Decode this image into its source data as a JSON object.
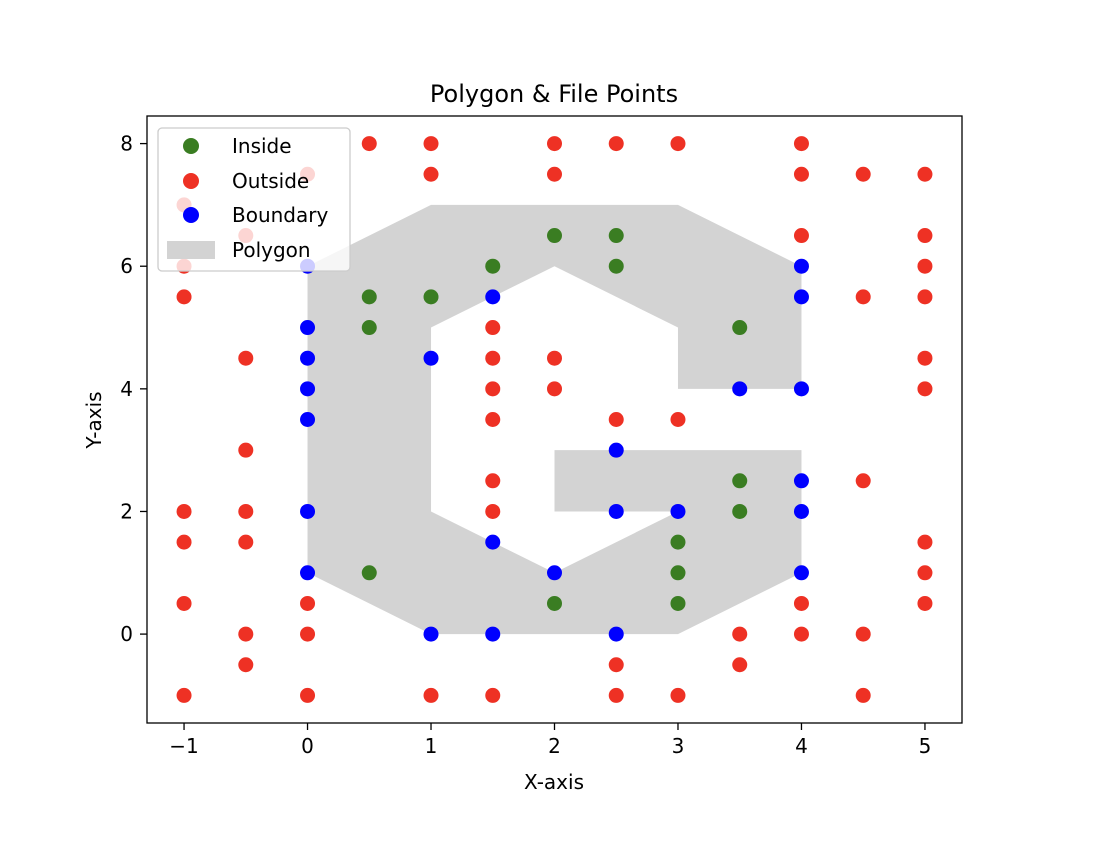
{
  "chart_data": {
    "type": "scatter",
    "title": "Polygon & File Points",
    "xlabel": "X-axis",
    "ylabel": "Y-axis",
    "xlim": [
      -1.3,
      5.3
    ],
    "ylim": [
      -1.45,
      8.45
    ],
    "xticks": [
      -1,
      0,
      1,
      2,
      3,
      4,
      5
    ],
    "xtick_labels": [
      "−1",
      "0",
      "1",
      "2",
      "3",
      "4",
      "5"
    ],
    "yticks": [
      0,
      2,
      4,
      6,
      8
    ],
    "ytick_labels": [
      "0",
      "2",
      "4",
      "6",
      "8"
    ],
    "grid": false,
    "legend_position": "top-left",
    "polygon": {
      "name": "Polygon",
      "color": "#d3d3d3",
      "vertices": [
        [
          0,
          6
        ],
        [
          1,
          7
        ],
        [
          3,
          7
        ],
        [
          4,
          6
        ],
        [
          4,
          4
        ],
        [
          3,
          4
        ],
        [
          3,
          5
        ],
        [
          2,
          6
        ],
        [
          1,
          5
        ],
        [
          1,
          2
        ],
        [
          2,
          1
        ],
        [
          3,
          2
        ],
        [
          2,
          2
        ],
        [
          2,
          3
        ],
        [
          4,
          3
        ],
        [
          4,
          1
        ],
        [
          3,
          0
        ],
        [
          1,
          0
        ],
        [
          0,
          1
        ]
      ]
    },
    "series": [
      {
        "name": "Inside",
        "color": "#3a7d22",
        "points": [
          [
            2,
            6.5
          ],
          [
            2.5,
            6.5
          ],
          [
            1.5,
            6
          ],
          [
            2.5,
            6
          ],
          [
            0.5,
            5.5
          ],
          [
            1,
            5.5
          ],
          [
            0.5,
            5
          ],
          [
            3.5,
            5
          ],
          [
            3.5,
            2.5
          ],
          [
            3.5,
            2
          ],
          [
            3,
            1.5
          ],
          [
            0.5,
            1
          ],
          [
            3,
            1
          ],
          [
            2,
            0.5
          ],
          [
            3,
            0.5
          ]
        ]
      },
      {
        "name": "Outside",
        "color": "#ee3124",
        "points": [
          [
            0.5,
            8
          ],
          [
            1,
            8
          ],
          [
            2,
            8
          ],
          [
            2.5,
            8
          ],
          [
            3,
            8
          ],
          [
            4,
            8
          ],
          [
            0,
            7.5
          ],
          [
            1,
            7.5
          ],
          [
            2,
            7.5
          ],
          [
            4,
            7.5
          ],
          [
            4.5,
            7.5
          ],
          [
            5,
            7.5
          ],
          [
            -1,
            7
          ],
          [
            -0.5,
            6.5
          ],
          [
            4,
            6.5
          ],
          [
            5,
            6.5
          ],
          [
            -1,
            6
          ],
          [
            5,
            6
          ],
          [
            -1,
            5.5
          ],
          [
            4.5,
            5.5
          ],
          [
            5,
            5.5
          ],
          [
            1.5,
            5
          ],
          [
            -0.5,
            4.5
          ],
          [
            1.5,
            4.5
          ],
          [
            2,
            4.5
          ],
          [
            5,
            4.5
          ],
          [
            1.5,
            4
          ],
          [
            2,
            4
          ],
          [
            5,
            4
          ],
          [
            1.5,
            3.5
          ],
          [
            2.5,
            3.5
          ],
          [
            3,
            3.5
          ],
          [
            -0.5,
            3
          ],
          [
            1.5,
            2.5
          ],
          [
            4.5,
            2.5
          ],
          [
            -1,
            2
          ],
          [
            -0.5,
            2
          ],
          [
            1.5,
            2
          ],
          [
            -1,
            1.5
          ],
          [
            -0.5,
            1.5
          ],
          [
            5,
            1.5
          ],
          [
            5,
            1
          ],
          [
            -1,
            0.5
          ],
          [
            0,
            0.5
          ],
          [
            4,
            0.5
          ],
          [
            5,
            0.5
          ],
          [
            -0.5,
            0
          ],
          [
            0,
            0
          ],
          [
            3.5,
            0
          ],
          [
            4,
            0
          ],
          [
            4.5,
            0
          ],
          [
            -0.5,
            -0.5
          ],
          [
            2.5,
            -0.5
          ],
          [
            3.5,
            -0.5
          ],
          [
            -1,
            -1
          ],
          [
            0,
            -1
          ],
          [
            1,
            -1
          ],
          [
            1.5,
            -1
          ],
          [
            2.5,
            -1
          ],
          [
            3,
            -1
          ],
          [
            4.5,
            -1
          ]
        ]
      },
      {
        "name": "Boundary",
        "color": "#0000ff",
        "points": [
          [
            0,
            6
          ],
          [
            4,
            6
          ],
          [
            1.5,
            5.5
          ],
          [
            4,
            5.5
          ],
          [
            0,
            5
          ],
          [
            0,
            4.5
          ],
          [
            1,
            4.5
          ],
          [
            0,
            4
          ],
          [
            3.5,
            4
          ],
          [
            4,
            4
          ],
          [
            0,
            3.5
          ],
          [
            2.5,
            3
          ],
          [
            4,
            2.5
          ],
          [
            0,
            2
          ],
          [
            2.5,
            2
          ],
          [
            3,
            2
          ],
          [
            4,
            2
          ],
          [
            1.5,
            1.5
          ],
          [
            0,
            1
          ],
          [
            2,
            1
          ],
          [
            4,
            1
          ],
          [
            1,
            0
          ],
          [
            1.5,
            0
          ],
          [
            2.5,
            0
          ]
        ]
      }
    ]
  }
}
